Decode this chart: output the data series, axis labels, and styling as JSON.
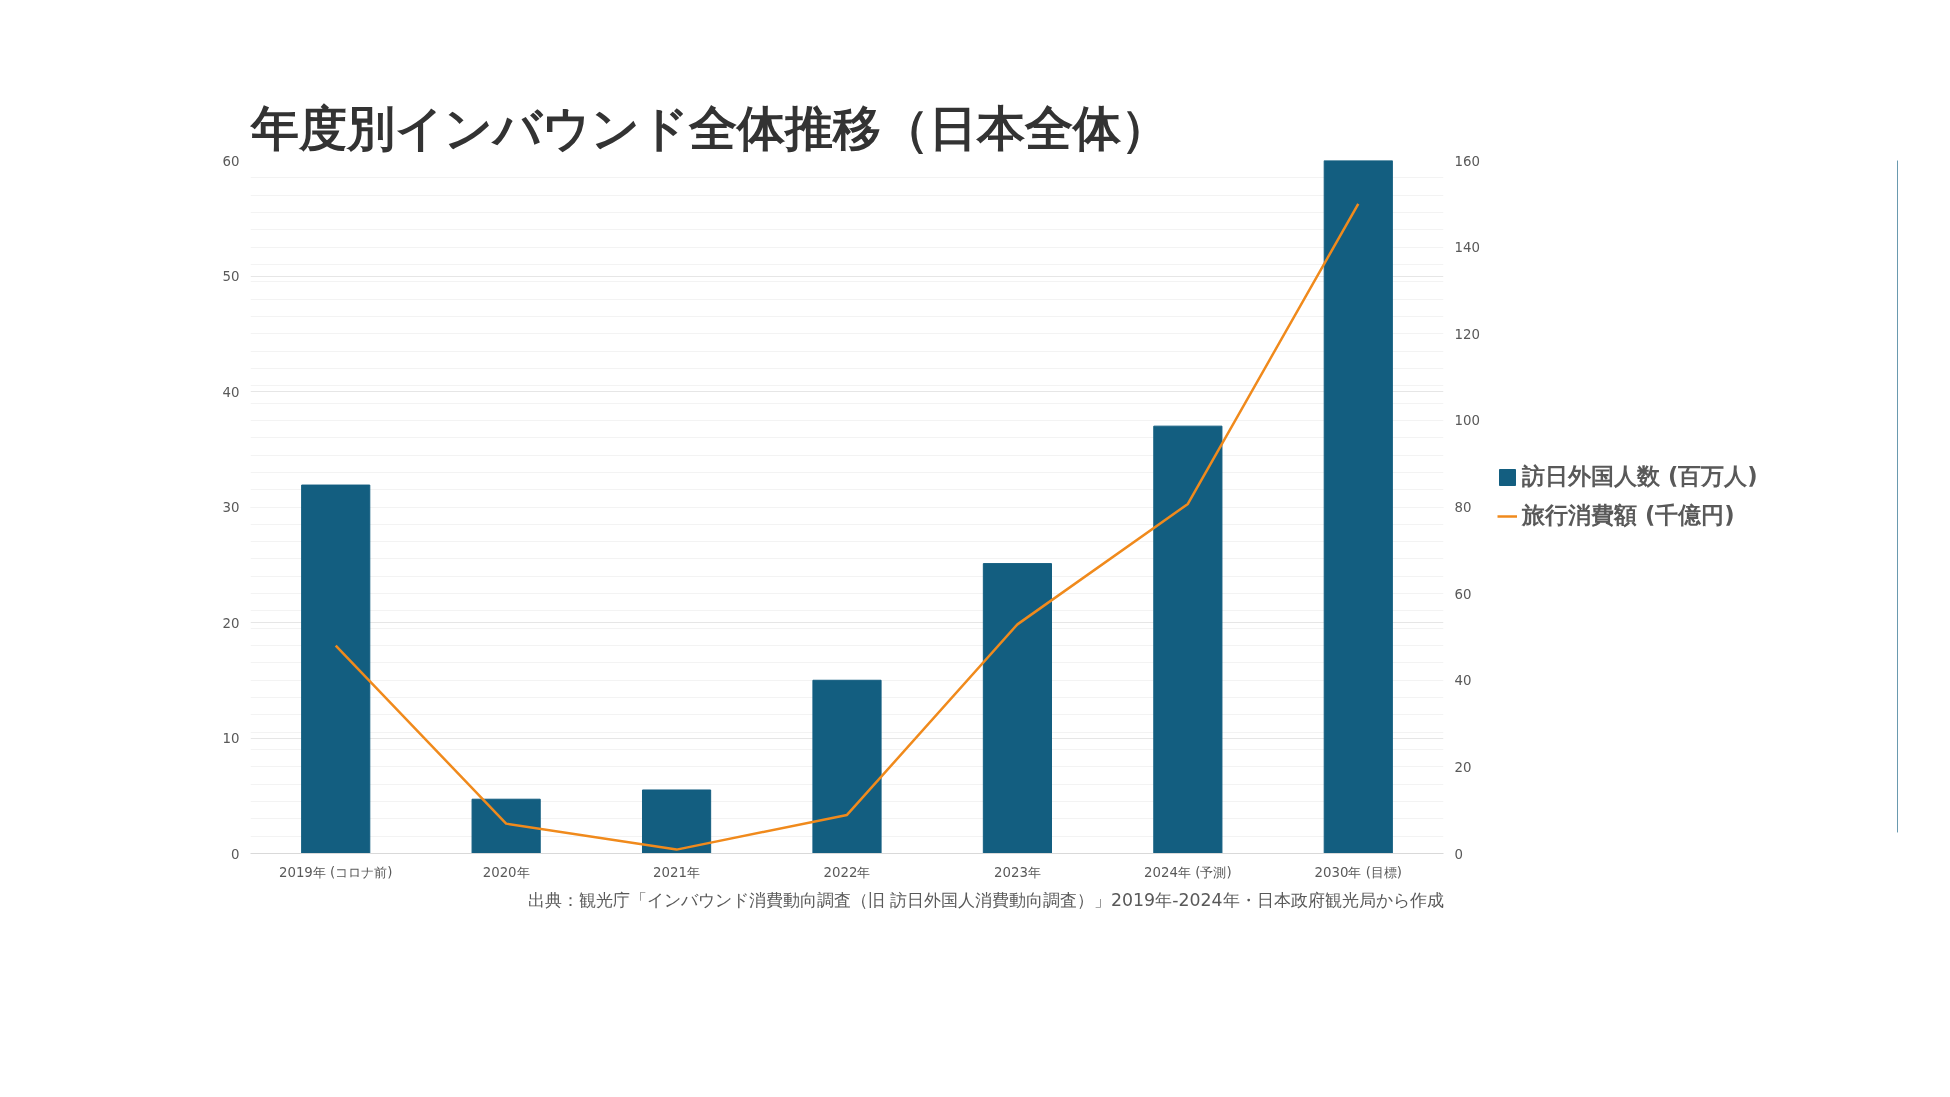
{
  "chart_data": {
    "type": "bar",
    "title": "年度別インバウンド全体推移（日本全体）",
    "categories": [
      "2019年 (コロナ前)",
      "2020年",
      "2021年",
      "2022年",
      "2023年",
      "2024年 (予測)",
      "2030年 (目標)"
    ],
    "series": [
      {
        "name": "訪日外国人数 (百万人)",
        "color": "#135e80",
        "values": [
          31.9,
          4.7,
          5.5,
          15.0,
          25.1,
          37.0,
          60.0
        ]
      },
      {
        "name": "旅行消費額 (千億円)",
        "type": "line",
        "axis": "y2",
        "color": "#f08a1c",
        "values": [
          48,
          6.9,
          0.9,
          8.9,
          52.9,
          80.7,
          150
        ]
      }
    ],
    "ylim": [
      0,
      60
    ],
    "yticks": [
      0,
      10,
      20,
      30,
      40,
      50,
      60
    ],
    "y2lim": [
      0,
      160
    ],
    "y2ticks": [
      0,
      20,
      40,
      60,
      80,
      100,
      120,
      140,
      160
    ],
    "grid": "y",
    "legend": "right",
    "annotations": [
      "出典：観光庁「インバウンド消費動向調査（旧 訪日外国人消費動向調査）」2019年-2024年・日本政府観光局から作成"
    ]
  }
}
